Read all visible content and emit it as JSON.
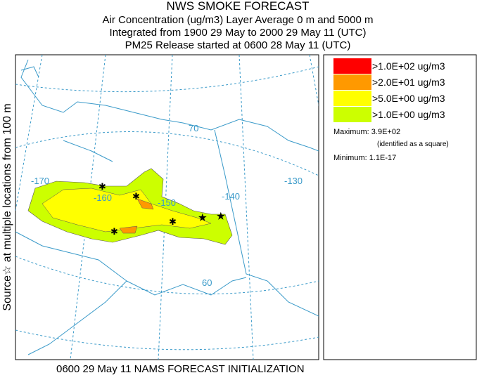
{
  "header": {
    "lines": [
      "NWS SMOKE FORECAST",
      "Air Concentration (ug/m3) Layer Average    0 m and  5000 m",
      "Integrated from 1900 29 May to 2000 29 May 11 (UTC)",
      "PM25 Release started at 0600 28 May 11 (UTC)"
    ]
  },
  "side_label": "Source☆ at multiple locations from  100 m",
  "map": {
    "labels": [
      "-170",
      "-160",
      "-150",
      "-140",
      "-130",
      "70",
      "60"
    ]
  },
  "legend": {
    "entries": [
      {
        "color": "#ff0000",
        "label": ">1.0E+02 ug/m3"
      },
      {
        "color": "#ff9900",
        "label": ">2.0E+01 ug/m3"
      },
      {
        "color": "#ffff00",
        "label": ">5.0E+00 ug/m3"
      },
      {
        "color": "#ccff00",
        "label": ">1.0E+00 ug/m3"
      }
    ],
    "maximum": "Maximum: 3.9E+02",
    "identified": "(identified as a square)",
    "minimum": "Minimum: 1.1E-17"
  },
  "footer": "0600 29 May 11 NAMS FORECAST INITIALIZATION"
}
